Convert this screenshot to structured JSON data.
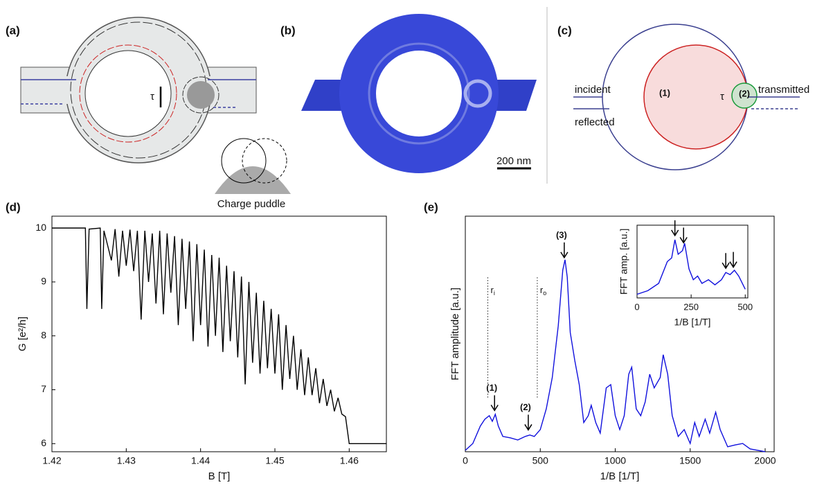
{
  "panels": {
    "a": {
      "label": "(a)",
      "tau": "τ",
      "caption": "Charge puddle"
    },
    "b": {
      "label": "(b)",
      "scale": "200 nm"
    },
    "c": {
      "label": "(c)",
      "incident": "incident",
      "transmitted": "transmitted",
      "reflected": "reflected",
      "region1": "(1)",
      "region2": "(2)",
      "tau": "τ"
    },
    "d": {
      "label": "(d)"
    },
    "e": {
      "label": "(e)"
    }
  },
  "chart_data": [
    {
      "type": "line",
      "xlabel": "B [T]",
      "ylabel": "G [e²/h]",
      "color": "#000000",
      "xlim": [
        1.42,
        1.465
      ],
      "xticks": [
        1.42,
        1.43,
        1.44,
        1.45,
        1.46
      ],
      "ylim": [
        5.85,
        10.22
      ],
      "yticks": [
        6,
        7,
        8,
        9,
        10
      ],
      "x": [
        1.42,
        1.4245,
        1.4247,
        1.425,
        1.4265,
        1.4267,
        1.427,
        1.428,
        1.4285,
        1.429,
        1.4295,
        1.43,
        1.4305,
        1.431,
        1.4315,
        1.432,
        1.4325,
        1.433,
        1.4335,
        1.434,
        1.4345,
        1.435,
        1.4355,
        1.436,
        1.4365,
        1.437,
        1.4375,
        1.438,
        1.4385,
        1.439,
        1.4395,
        1.44,
        1.4405,
        1.441,
        1.4415,
        1.442,
        1.4425,
        1.443,
        1.4435,
        1.444,
        1.4445,
        1.445,
        1.4455,
        1.446,
        1.4465,
        1.447,
        1.4475,
        1.448,
        1.4485,
        1.449,
        1.4495,
        1.45,
        1.4505,
        1.451,
        1.4515,
        1.452,
        1.4525,
        1.453,
        1.4535,
        1.454,
        1.4545,
        1.455,
        1.4555,
        1.456,
        1.4565,
        1.457,
        1.4575,
        1.458,
        1.4585,
        1.459,
        1.4595,
        1.46,
        1.465
      ],
      "values": [
        10,
        10,
        8.5,
        9.98,
        10,
        8.5,
        9.95,
        9.4,
        9.98,
        9.1,
        9.95,
        9.3,
        9.97,
        9.2,
        9.95,
        8.3,
        9.95,
        9.0,
        9.9,
        8.6,
        9.95,
        8.4,
        9.9,
        8.8,
        9.85,
        8.2,
        9.8,
        8.5,
        9.75,
        7.9,
        9.7,
        8.2,
        9.6,
        7.8,
        9.5,
        8.0,
        9.45,
        7.7,
        9.3,
        7.9,
        9.2,
        7.6,
        9.1,
        7.1,
        9.0,
        7.5,
        8.8,
        7.3,
        8.65,
        7.4,
        8.5,
        7.3,
        8.4,
        7.0,
        8.2,
        7.2,
        8.0,
        7.0,
        7.75,
        6.9,
        7.6,
        6.9,
        7.4,
        6.75,
        7.2,
        6.7,
        7.0,
        6.6,
        6.85,
        6.55,
        6.5,
        6.0,
        6.0
      ]
    },
    {
      "type": "line",
      "xlabel": "1/B [1/T]",
      "ylabel": "FFT amplitude  [a.u.]",
      "color": "#1010dd",
      "xlim": [
        0,
        2060
      ],
      "xticks": [
        0,
        500,
        1000,
        1500,
        2000
      ],
      "ylim": [
        0,
        1
      ],
      "x": [
        0,
        50,
        100,
        130,
        160,
        180,
        200,
        220,
        250,
        300,
        350,
        400,
        430,
        460,
        500,
        540,
        580,
        620,
        650,
        665,
        680,
        700,
        730,
        760,
        790,
        820,
        840,
        870,
        900,
        940,
        970,
        1000,
        1030,
        1060,
        1090,
        1110,
        1140,
        1170,
        1200,
        1230,
        1260,
        1300,
        1320,
        1350,
        1380,
        1420,
        1460,
        1500,
        1530,
        1560,
        1600,
        1630,
        1670,
        1700,
        1750,
        1800,
        1850,
        1900,
        1950,
        2000
      ],
      "values": [
        0.006,
        0.035,
        0.109,
        0.138,
        0.153,
        0.129,
        0.159,
        0.109,
        0.065,
        0.059,
        0.05,
        0.065,
        0.071,
        0.065,
        0.094,
        0.182,
        0.315,
        0.535,
        0.771,
        0.815,
        0.741,
        0.506,
        0.388,
        0.285,
        0.124,
        0.153,
        0.197,
        0.124,
        0.079,
        0.271,
        0.285,
        0.153,
        0.094,
        0.153,
        0.329,
        0.359,
        0.182,
        0.153,
        0.212,
        0.329,
        0.271,
        0.315,
        0.412,
        0.329,
        0.153,
        0.065,
        0.094,
        0.035,
        0.124,
        0.065,
        0.138,
        0.079,
        0.168,
        0.094,
        0.021,
        0.029,
        0.035,
        0.012,
        0.006,
        0
      ],
      "annotations": [
        {
          "text": "(1)",
          "x": 195
        },
        {
          "text": "(2)",
          "x": 420
        },
        {
          "text": "(3)",
          "x": 660
        }
      ],
      "reference_lines": [
        {
          "name": "r",
          "sub": "i",
          "x": 150
        },
        {
          "name": "r",
          "sub": "o",
          "x": 480
        }
      ]
    },
    {
      "type": "line",
      "xlabel": "1/B [1/T]",
      "ylabel": "FFT amp. [a.u.]",
      "color": "#1010dd",
      "xlim": [
        0,
        512
      ],
      "xticks": [
        0,
        250,
        500
      ],
      "ylim": [
        0,
        1
      ],
      "x": [
        0,
        50,
        100,
        140,
        160,
        175,
        190,
        210,
        220,
        240,
        260,
        280,
        300,
        330,
        360,
        390,
        410,
        430,
        450,
        470,
        500
      ],
      "values": [
        0.05,
        0.1,
        0.2,
        0.5,
        0.55,
        0.8,
        0.6,
        0.65,
        0.75,
        0.4,
        0.25,
        0.3,
        0.2,
        0.25,
        0.18,
        0.25,
        0.35,
        0.32,
        0.38,
        0.3,
        0.12
      ],
      "arrows": [
        175,
        215,
        410,
        445
      ]
    }
  ]
}
